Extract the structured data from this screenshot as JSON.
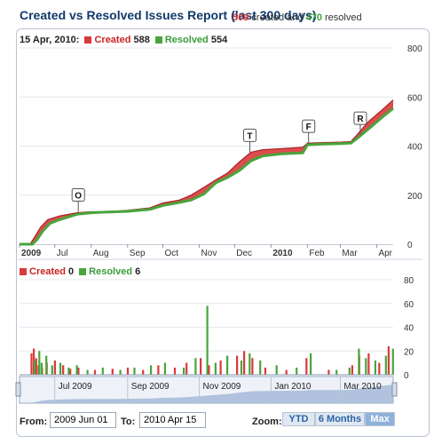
{
  "header": {
    "title": "Created vs Resolved Issues Report (last 300 days)",
    "summary_created_count": "509",
    "summary_created_word": "created and",
    "summary_resolved_count": "470",
    "summary_resolved_word": "resolved"
  },
  "top_legend": {
    "date": "15 Apr, 2010:",
    "created_label": "Created",
    "created_value": "588",
    "resolved_label": "Resolved",
    "resolved_value": "554"
  },
  "bottom_legend": {
    "created_label": "Created",
    "created_value": "0",
    "resolved_label": "Resolved",
    "resolved_value": "6"
  },
  "colors": {
    "created": "#d9393c",
    "resolved": "#48a53b",
    "navigator_fill": "#a9bcd9",
    "accent": "#123a6b"
  },
  "chart_data": [
    {
      "type": "area",
      "x_type": "date",
      "x_range": [
        "2009-06-01",
        "2010-04-15"
      ],
      "ylim": [
        0,
        800
      ],
      "y_ticks": [
        0,
        200,
        400,
        600,
        800
      ],
      "x_tick_labels": [
        {
          "date": "2009-06-01",
          "label": "2009"
        },
        {
          "date": "2009-07-01",
          "label": "Jul"
        },
        {
          "date": "2009-08-01",
          "label": "Aug"
        },
        {
          "date": "2009-09-01",
          "label": "Sep"
        },
        {
          "date": "2009-10-01",
          "label": "Oct"
        },
        {
          "date": "2009-11-01",
          "label": "Nov"
        },
        {
          "date": "2009-12-01",
          "label": "Dec"
        },
        {
          "date": "2010-01-01",
          "label": "2010"
        },
        {
          "date": "2010-02-01",
          "label": "Feb"
        },
        {
          "date": "2010-03-01",
          "label": "Mar"
        },
        {
          "date": "2010-04-01",
          "label": "Apr"
        }
      ],
      "series": [
        {
          "name": "Created",
          "points": [
            [
              "2009-06-01",
              0
            ],
            [
              "2009-06-10",
              0
            ],
            [
              "2009-06-14",
              30
            ],
            [
              "2009-06-19",
              70
            ],
            [
              "2009-06-25",
              100
            ],
            [
              "2009-07-05",
              115
            ],
            [
              "2009-07-20",
              128
            ],
            [
              "2009-08-01",
              132
            ],
            [
              "2009-08-15",
              133
            ],
            [
              "2009-09-01",
              138
            ],
            [
              "2009-09-20",
              148
            ],
            [
              "2009-10-01",
              168
            ],
            [
              "2009-10-15",
              180
            ],
            [
              "2009-10-25",
              200
            ],
            [
              "2009-11-05",
              232
            ],
            [
              "2009-11-15",
              262
            ],
            [
              "2009-11-25",
              290
            ],
            [
              "2009-12-05",
              335
            ],
            [
              "2009-12-15",
              375
            ],
            [
              "2009-12-25",
              385
            ],
            [
              "2010-01-10",
              390
            ],
            [
              "2010-01-28",
              395
            ],
            [
              "2010-02-01",
              412
            ],
            [
              "2010-02-15",
              414
            ],
            [
              "2010-03-01",
              416
            ],
            [
              "2010-03-10",
              418
            ],
            [
              "2010-03-15",
              445
            ],
            [
              "2010-03-25",
              500
            ],
            [
              "2010-04-05",
              545
            ],
            [
              "2010-04-15",
              588
            ]
          ]
        },
        {
          "name": "Resolved",
          "points": [
            [
              "2009-06-01",
              0
            ],
            [
              "2009-06-12",
              0
            ],
            [
              "2009-06-16",
              20
            ],
            [
              "2009-06-21",
              55
            ],
            [
              "2009-06-27",
              85
            ],
            [
              "2009-07-05",
              100
            ],
            [
              "2009-07-20",
              122
            ],
            [
              "2009-08-01",
              128
            ],
            [
              "2009-08-15",
              131
            ],
            [
              "2009-09-01",
              134
            ],
            [
              "2009-09-20",
              142
            ],
            [
              "2009-10-01",
              158
            ],
            [
              "2009-10-15",
              170
            ],
            [
              "2009-10-25",
              180
            ],
            [
              "2009-11-05",
              205
            ],
            [
              "2009-11-15",
              250
            ],
            [
              "2009-11-25",
              272
            ],
            [
              "2009-12-05",
              300
            ],
            [
              "2009-12-15",
              340
            ],
            [
              "2009-12-25",
              360
            ],
            [
              "2010-01-10",
              368
            ],
            [
              "2010-01-28",
              372
            ],
            [
              "2010-02-01",
              405
            ],
            [
              "2010-02-15",
              408
            ],
            [
              "2010-03-01",
              410
            ],
            [
              "2010-03-10",
              412
            ],
            [
              "2010-03-15",
              430
            ],
            [
              "2010-03-25",
              470
            ],
            [
              "2010-04-05",
              515
            ],
            [
              "2010-04-15",
              554
            ]
          ]
        }
      ],
      "flags": [
        {
          "label": "O",
          "date": "2009-07-21",
          "value": 132
        },
        {
          "label": "T",
          "date": "2009-12-14",
          "value": 375
        },
        {
          "label": "F",
          "date": "2010-02-02",
          "value": 412
        },
        {
          "label": "R",
          "date": "2010-03-18",
          "value": 445
        }
      ]
    },
    {
      "type": "bar",
      "x_type": "date",
      "ylim": [
        0,
        80
      ],
      "y_ticks": [
        0,
        20,
        40,
        60,
        80
      ],
      "series": [
        {
          "name": "Created",
          "points": [
            [
              "2009-06-12",
              18
            ],
            [
              "2009-06-14",
              22
            ],
            [
              "2009-06-16",
              14
            ],
            [
              "2009-06-18",
              8
            ],
            [
              "2009-06-21",
              6
            ],
            [
              "2009-06-25",
              10
            ],
            [
              "2009-07-02",
              12
            ],
            [
              "2009-07-09",
              8
            ],
            [
              "2009-07-15",
              5
            ],
            [
              "2009-07-22",
              6
            ],
            [
              "2009-08-05",
              4
            ],
            [
              "2009-08-20",
              5
            ],
            [
              "2009-09-02",
              6
            ],
            [
              "2009-09-15",
              4
            ],
            [
              "2009-09-28",
              8
            ],
            [
              "2009-10-12",
              6
            ],
            [
              "2009-10-22",
              10
            ],
            [
              "2009-11-03",
              14
            ],
            [
              "2009-11-10",
              8
            ],
            [
              "2009-11-20",
              12
            ],
            [
              "2009-12-04",
              16
            ],
            [
              "2009-12-10",
              20
            ],
            [
              "2009-12-17",
              14
            ],
            [
              "2009-12-28",
              6
            ],
            [
              "2010-01-15",
              4
            ],
            [
              "2010-02-01",
              14
            ],
            [
              "2010-02-20",
              4
            ],
            [
              "2010-03-12",
              8
            ],
            [
              "2010-03-18",
              16
            ],
            [
              "2010-03-26",
              18
            ],
            [
              "2010-04-04",
              10
            ],
            [
              "2010-04-12",
              24
            ]
          ]
        },
        {
          "name": "Resolved",
          "points": [
            [
              "2009-06-13",
              12
            ],
            [
              "2009-06-17",
              20
            ],
            [
              "2009-06-19",
              10
            ],
            [
              "2009-06-23",
              16
            ],
            [
              "2009-06-28",
              8
            ],
            [
              "2009-07-05",
              10
            ],
            [
              "2009-07-12",
              6
            ],
            [
              "2009-07-19",
              8
            ],
            [
              "2009-07-28",
              4
            ],
            [
              "2009-08-10",
              6
            ],
            [
              "2009-08-25",
              4
            ],
            [
              "2009-09-06",
              6
            ],
            [
              "2009-09-20",
              8
            ],
            [
              "2009-10-02",
              10
            ],
            [
              "2009-10-18",
              6
            ],
            [
              "2009-10-28",
              14
            ],
            [
              "2009-11-07",
              58
            ],
            [
              "2009-11-14",
              10
            ],
            [
              "2009-11-24",
              16
            ],
            [
              "2009-12-06",
              12
            ],
            [
              "2009-12-13",
              18
            ],
            [
              "2009-12-22",
              12
            ],
            [
              "2010-01-05",
              8
            ],
            [
              "2010-01-22",
              6
            ],
            [
              "2010-02-03",
              18
            ],
            [
              "2010-02-25",
              4
            ],
            [
              "2010-03-08",
              6
            ],
            [
              "2010-03-16",
              22
            ],
            [
              "2010-03-22",
              14
            ],
            [
              "2010-03-30",
              12
            ],
            [
              "2010-04-08",
              16
            ],
            [
              "2010-04-14",
              22
            ]
          ]
        }
      ]
    }
  ],
  "navigator": {
    "labels": [
      "Jul 2009",
      "Sep 2009",
      "Nov 2009",
      "Jan 2010",
      "Mar 2010"
    ],
    "label_dates": [
      "2009-07-01",
      "2009-09-01",
      "2009-11-01",
      "2010-01-01",
      "2010-03-01"
    ]
  },
  "range_selector": {
    "from_label": "From:",
    "from_value": "2009 Jun 01",
    "to_label": "To:",
    "to_value": "2010 Apr 15",
    "zoom_label": "Zoom:",
    "buttons": [
      "YTD",
      "6 Months",
      "Max"
    ],
    "selected": "Max"
  }
}
